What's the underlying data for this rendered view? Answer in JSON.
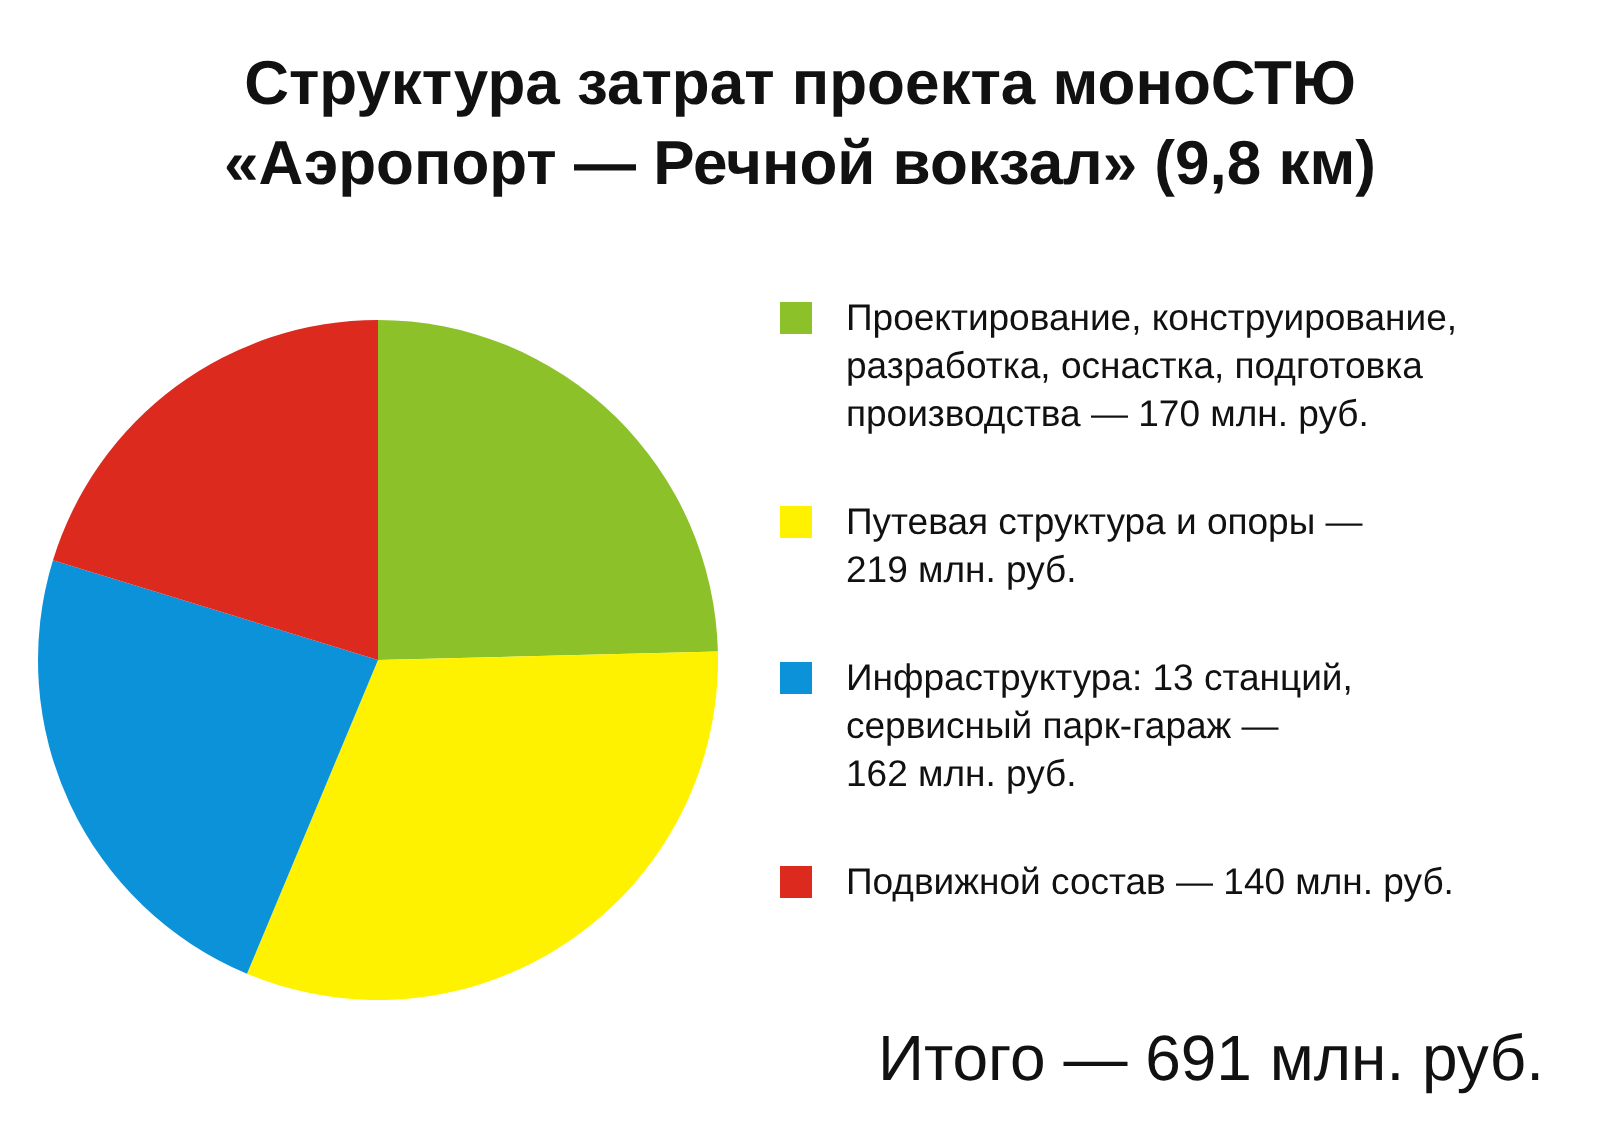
{
  "chart_data": {
    "type": "pie",
    "title": "Структура затрат проекта моноСТЮ\n«Аэропорт — Речной вокзал» (9,8 км)",
    "categories": [
      "Проектирование, конструирование,\nразработка, оснастка, подготовка\nпроизводства — 170 млн. руб.",
      "Путевая структура и опоры —\n219 млн. руб.",
      "Инфраструктура: 13 станций,\nсервисный парк-гараж —\n162 млн. руб.",
      "Подвижной состав — 140 млн. руб."
    ],
    "values": [
      170,
      219,
      162,
      140
    ],
    "colors": [
      "#8cc12a",
      "#fff200",
      "#0b92d8",
      "#dc2a1e"
    ],
    "legend": "right",
    "annotations": [
      "Итого — 691 млн. руб."
    ]
  }
}
